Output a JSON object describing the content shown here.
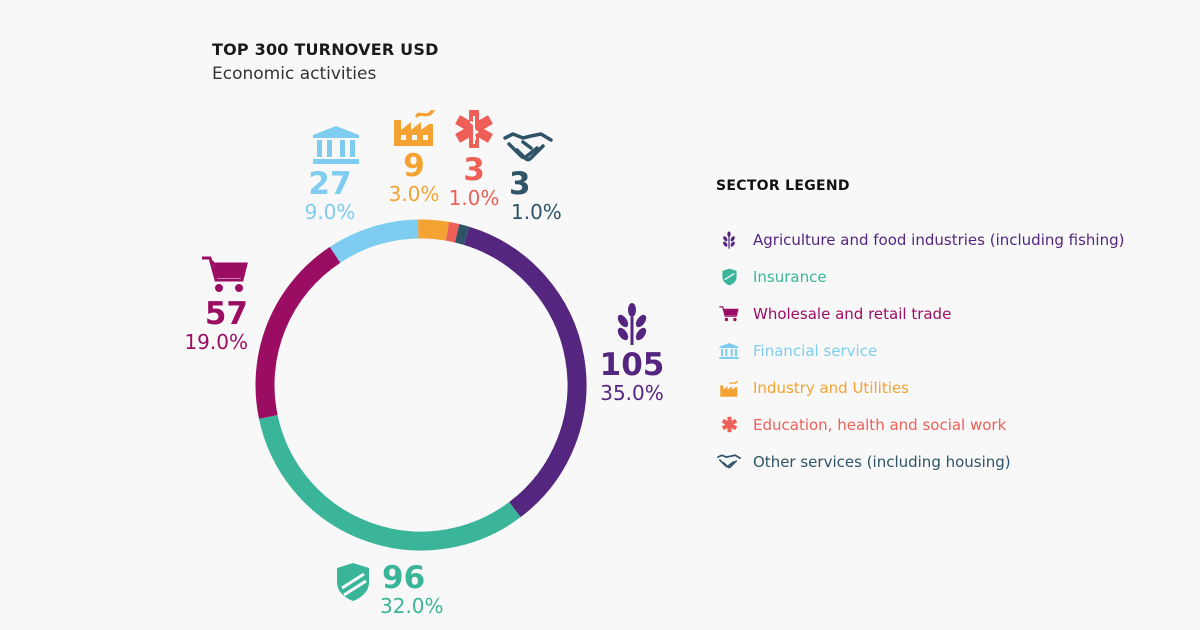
{
  "header": {
    "title": "TOP 300 TURNOVER USD",
    "subtitle": "Economic activities"
  },
  "legend": {
    "title": "SECTOR LEGEND"
  },
  "chart_data": {
    "type": "pie",
    "title": "TOP 300 TURNOVER USD",
    "subtitle": "Economic activities",
    "legend_position": "right",
    "donut": true,
    "slices": [
      {
        "name": "Agriculture and food industries (including fishing)",
        "count": 105,
        "count_label": "105",
        "percent": 35.0,
        "percent_label": "35.0%",
        "color": "#55267f",
        "icon": "wheat-icon"
      },
      {
        "name": "Insurance",
        "count": 96,
        "count_label": "96",
        "percent": 32.0,
        "percent_label": "32.0%",
        "color": "#3ab59a",
        "icon": "shield-icon"
      },
      {
        "name": "Wholesale and retail trade",
        "count": 57,
        "count_label": "57",
        "percent": 19.0,
        "percent_label": "19.0%",
        "color": "#9b0d63",
        "icon": "shopping-cart-icon"
      },
      {
        "name": "Financial service",
        "count": 27,
        "count_label": "27",
        "percent": 9.0,
        "percent_label": "9.0%",
        "color": "#7ecdf1",
        "icon": "bank-icon"
      },
      {
        "name": "Industry and Utilities",
        "count": 9,
        "count_label": "9",
        "percent": 3.0,
        "percent_label": "3.0%",
        "color": "#f4a232",
        "icon": "factory-icon"
      },
      {
        "name": "Education, health and social work",
        "count": 3,
        "count_label": "3",
        "percent": 1.0,
        "percent_label": "1.0%",
        "color": "#ee5f58",
        "icon": "medical-star-icon"
      },
      {
        "name": "Other services (including housing)",
        "count": 3,
        "count_label": "3",
        "percent": 1.0,
        "percent_label": "1.0%",
        "color": "#2f5468",
        "icon": "handshake-icon"
      }
    ]
  }
}
